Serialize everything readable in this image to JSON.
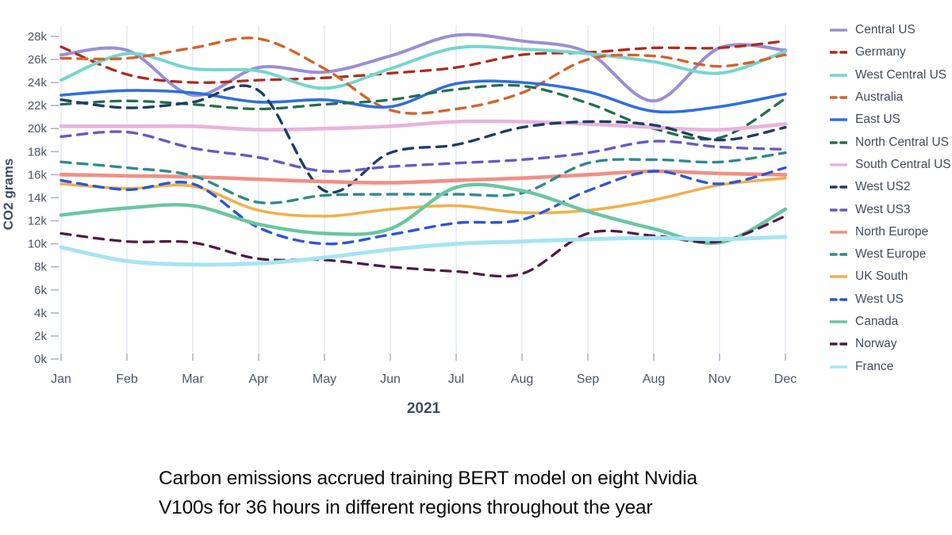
{
  "figure": {
    "y_axis_title": "CO2 grams",
    "x_axis_title": "2021",
    "caption_line1": "Carbon emissions accrued training BERT model on eight Nvidia",
    "caption_line2": "V100s for 36 hours in different regions throughout the year"
  },
  "chart_data": {
    "type": "line",
    "title": "",
    "xlabel": "2021",
    "ylabel": "CO2 grams",
    "unit": "thousand grams CO2",
    "ylim": [
      0,
      28000
    ],
    "grid": "vertical-only",
    "legend_position": "right",
    "line_style_note": "mix of solid and dashed smoothed spline lines",
    "categories": [
      "Jan",
      "Feb",
      "Mar",
      "Apr",
      "May",
      "Jun",
      "Jul",
      "Aug",
      "Sep",
      "Aug",
      "Nov",
      "Dec"
    ],
    "y_tick_labels": [
      "0k",
      "2k",
      "4k",
      "6k",
      "8k",
      "10k",
      "12k",
      "14k",
      "16k",
      "18k",
      "20k",
      "22k",
      "24k",
      "26k",
      "28k"
    ],
    "series": [
      {
        "name": "Central US",
        "color": "#9a8ed5",
        "dash": false,
        "width": 4.0,
        "values": [
          26.4,
          26.8,
          22.9,
          25.3,
          24.9,
          26.3,
          28.1,
          27.6,
          26.6,
          22.4,
          27.0,
          26.8
        ]
      },
      {
        "name": "Germany",
        "color": "#b02a1d",
        "dash": true,
        "width": 3.3,
        "values": [
          27.1,
          24.7,
          24.0,
          24.2,
          24.4,
          24.8,
          25.3,
          26.4,
          26.6,
          27.0,
          27.0,
          27.6
        ]
      },
      {
        "name": "West Central US",
        "color": "#74d6cd",
        "dash": false,
        "width": 4.0,
        "values": [
          24.2,
          26.5,
          25.2,
          25.0,
          23.5,
          25.2,
          27.0,
          26.9,
          26.5,
          25.8,
          24.8,
          26.7
        ]
      },
      {
        "name": "Australia",
        "color": "#d4632a",
        "dash": true,
        "width": 3.4,
        "values": [
          26.1,
          26.1,
          27.0,
          27.8,
          25.2,
          21.6,
          21.7,
          23.1,
          26.0,
          26.3,
          25.4,
          26.4
        ]
      },
      {
        "name": "East US",
        "color": "#2e6fdd",
        "dash": false,
        "width": 3.6,
        "values": [
          22.9,
          23.3,
          23.1,
          22.3,
          22.5,
          21.9,
          23.9,
          24.0,
          23.2,
          21.5,
          21.9,
          23.0
        ]
      },
      {
        "name": "North Central US",
        "color": "#256e4c",
        "dash": true,
        "width": 3.3,
        "values": [
          22.1,
          22.4,
          22.1,
          21.7,
          22.1,
          22.5,
          23.4,
          23.7,
          22.2,
          20.0,
          19.2,
          22.6
        ]
      },
      {
        "name": "South Central US",
        "color": "#e8b3dc",
        "dash": false,
        "width": 4.6,
        "values": [
          20.2,
          20.2,
          20.2,
          19.9,
          20.0,
          20.2,
          20.6,
          20.6,
          20.4,
          20.1,
          19.9,
          20.4
        ]
      },
      {
        "name": "West US2",
        "color": "#1b3e66",
        "dash": true,
        "width": 3.4,
        "values": [
          22.5,
          21.8,
          22.3,
          23.3,
          14.6,
          17.9,
          18.6,
          20.1,
          20.6,
          20.3,
          19.0,
          20.1
        ]
      },
      {
        "name": "West US3",
        "color": "#6659c4",
        "dash": true,
        "width": 3.4,
        "values": [
          19.3,
          19.7,
          18.3,
          17.5,
          16.3,
          16.7,
          17.0,
          17.3,
          17.9,
          18.9,
          18.4,
          18.2
        ]
      },
      {
        "name": "North Europe",
        "color": "#f18f85",
        "dash": false,
        "width": 4.6,
        "values": [
          16.0,
          15.9,
          15.8,
          15.6,
          15.4,
          15.3,
          15.5,
          15.7,
          16.0,
          16.3,
          16.1,
          16.0
        ]
      },
      {
        "name": "West Europe",
        "color": "#2f8a8d",
        "dash": true,
        "width": 3.4,
        "values": [
          17.1,
          16.6,
          15.9,
          13.6,
          14.2,
          14.3,
          14.3,
          14.4,
          17.0,
          17.3,
          17.1,
          17.9
        ]
      },
      {
        "name": "UK South",
        "color": "#f1b04c",
        "dash": false,
        "width": 3.6,
        "values": [
          15.2,
          14.8,
          15.0,
          12.9,
          12.4,
          13.0,
          13.3,
          12.7,
          12.9,
          13.8,
          15.1,
          15.7
        ]
      },
      {
        "name": "West US",
        "color": "#2c55d8",
        "dash": true,
        "width": 3.4,
        "values": [
          15.5,
          14.7,
          15.2,
          11.4,
          10.0,
          10.8,
          11.8,
          12.1,
          14.6,
          16.3,
          15.2,
          16.6
        ]
      },
      {
        "name": "Canada",
        "color": "#69c6a0",
        "dash": false,
        "width": 4.4,
        "values": [
          12.5,
          13.1,
          13.3,
          11.7,
          10.9,
          11.3,
          14.9,
          14.6,
          12.8,
          11.3,
          10.1,
          13.0
        ]
      },
      {
        "name": "Norway",
        "color": "#4f1a48",
        "dash": true,
        "width": 3.3,
        "values": [
          10.9,
          10.2,
          10.1,
          8.7,
          8.6,
          8.0,
          7.6,
          7.4,
          10.9,
          10.7,
          10.2,
          12.4
        ]
      },
      {
        "name": "France",
        "color": "#a6e4f2",
        "dash": false,
        "width": 5.0,
        "values": [
          9.7,
          8.5,
          8.2,
          8.3,
          8.8,
          9.5,
          10.0,
          10.2,
          10.4,
          10.5,
          10.4,
          10.6
        ]
      }
    ]
  }
}
